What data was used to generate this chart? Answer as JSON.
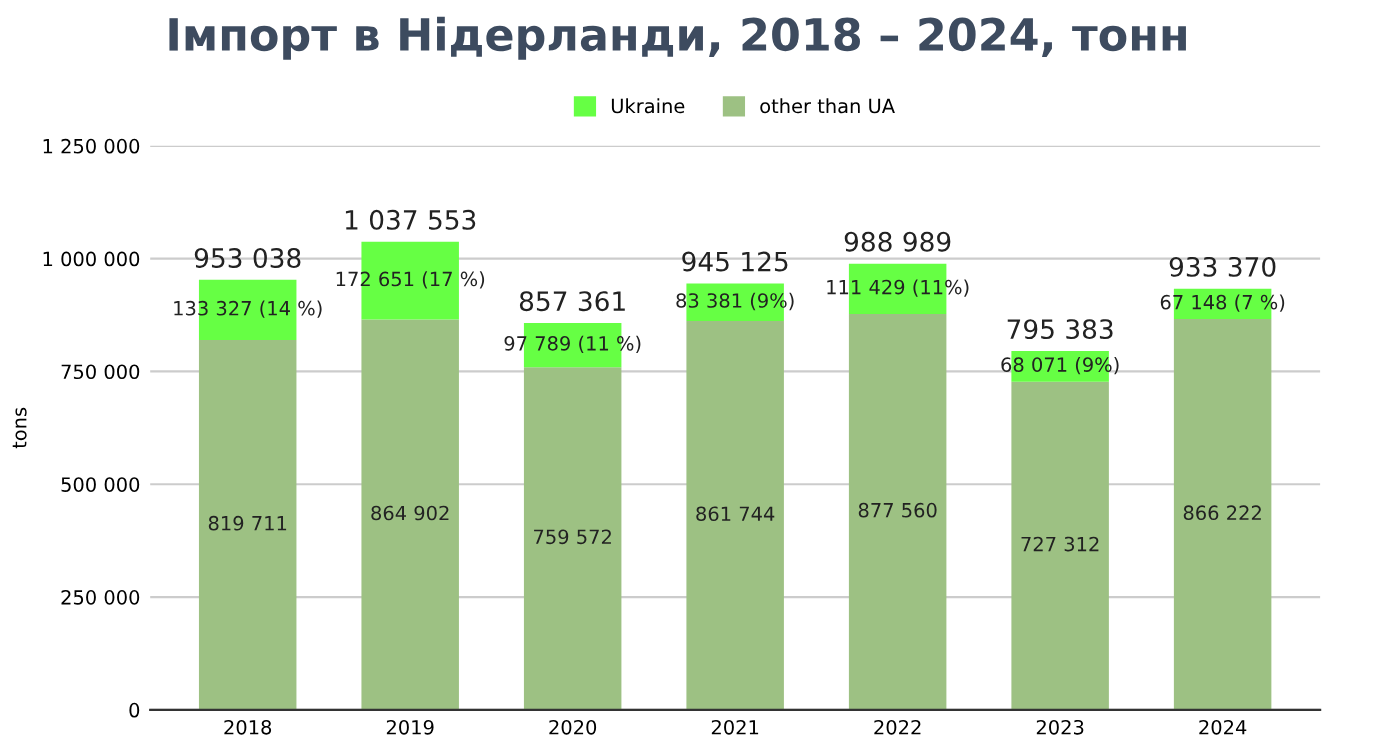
{
  "chart_data": {
    "type": "bar",
    "title": "Імпорт в Нідерланди, 2018 – 2024, тонн",
    "ylabel": "tons",
    "categories": [
      "2018",
      "2019",
      "2020",
      "2021",
      "2022",
      "2023",
      "2024"
    ],
    "stacked": true,
    "series": [
      {
        "name": "other than UA",
        "color": "#9dc183",
        "values": [
          819711,
          864902,
          759572,
          861744,
          877560,
          727312,
          866222
        ],
        "value_labels": [
          "819 711",
          "864 902",
          "759 572",
          "861 744",
          "877 560",
          "727 312",
          "866 222"
        ]
      },
      {
        "name": "Ukraine",
        "color": "#66ff44",
        "values": [
          133327,
          172651,
          97789,
          83381,
          111429,
          68071,
          67148
        ],
        "value_labels": [
          "133 327 (14 %)",
          "172 651 (17 %)",
          "97 789 (11 %)",
          "83 381 (9%)",
          "111 429 (11%)",
          "68 071 (9%)",
          "67 148 (7 %)"
        ]
      }
    ],
    "totals": [
      "953 038",
      "1 037 553",
      "857 361",
      "945 125",
      "988 989",
      "795 383",
      "933 370"
    ],
    "ylim": [
      0,
      1250000
    ],
    "yticks": [
      0,
      {
        "value": 250000,
        "label": "250 000"
      },
      {
        "value": 500000,
        "label": "500 000"
      },
      {
        "value": 750000,
        "label": "750 000"
      },
      {
        "value": 1000000,
        "label": "1 000 000"
      },
      {
        "value": 1250000,
        "label": "1 250 000"
      }
    ],
    "grid": "y",
    "legend": "top"
  }
}
